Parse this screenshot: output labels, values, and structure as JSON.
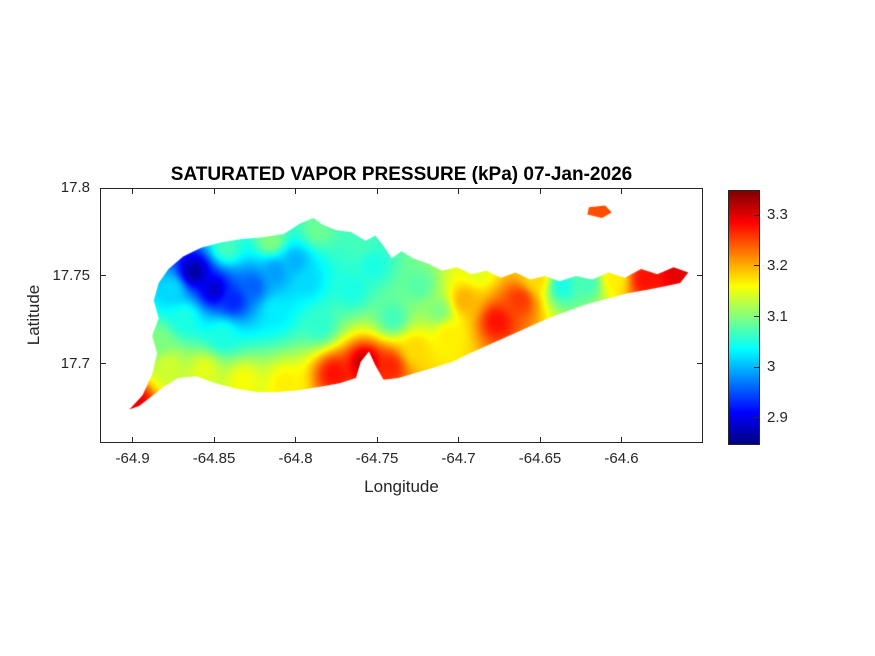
{
  "chart_data": {
    "type": "heatmap",
    "title": "SATURATED VAPOR PRESSURE (kPa) 07-Jan-2026",
    "xlabel": "Longitude",
    "ylabel": "Latitude",
    "xlim": [
      -64.92,
      -64.55
    ],
    "ylim": [
      17.655,
      17.8
    ],
    "xticks": [
      -64.9,
      -64.85,
      -64.8,
      -64.75,
      -64.7,
      -64.65,
      -64.6
    ],
    "yticks": [
      17.7,
      17.75,
      17.8
    ],
    "grid": false,
    "colorbar": {
      "colormap": "jet",
      "vmin": 2.85,
      "vmax": 3.35,
      "ticks": [
        2.9,
        3,
        3.1,
        3.2,
        3.3
      ]
    },
    "islands": [
      [
        [
          -64.902,
          17.674
        ],
        [
          -64.894,
          17.682
        ],
        [
          -64.888,
          17.694
        ],
        [
          -64.885,
          17.706
        ],
        [
          -64.888,
          17.716
        ],
        [
          -64.884,
          17.726
        ],
        [
          -64.887,
          17.736
        ],
        [
          -64.884,
          17.746
        ],
        [
          -64.878,
          17.754
        ],
        [
          -64.869,
          17.761
        ],
        [
          -64.858,
          17.766
        ],
        [
          -64.846,
          17.769
        ],
        [
          -64.833,
          17.771
        ],
        [
          -64.82,
          17.772
        ],
        [
          -64.807,
          17.774
        ],
        [
          -64.797,
          17.78
        ],
        [
          -64.789,
          17.783
        ],
        [
          -64.783,
          17.779
        ],
        [
          -64.775,
          17.776
        ],
        [
          -64.766,
          17.775
        ],
        [
          -64.757,
          17.77
        ],
        [
          -64.751,
          17.773
        ],
        [
          -64.746,
          17.767
        ],
        [
          -64.741,
          17.76
        ],
        [
          -64.735,
          17.764
        ],
        [
          -64.728,
          17.76
        ],
        [
          -64.719,
          17.757
        ],
        [
          -64.71,
          17.753
        ],
        [
          -64.701,
          17.755
        ],
        [
          -64.692,
          17.751
        ],
        [
          -64.683,
          17.753
        ],
        [
          -64.674,
          17.749
        ],
        [
          -64.665,
          17.752
        ],
        [
          -64.656,
          17.748
        ],
        [
          -64.647,
          17.75
        ],
        [
          -64.638,
          17.747
        ],
        [
          -64.628,
          17.75
        ],
        [
          -64.618,
          17.748
        ],
        [
          -64.608,
          17.752
        ],
        [
          -64.598,
          17.749
        ],
        [
          -64.588,
          17.754
        ],
        [
          -64.578,
          17.751
        ],
        [
          -64.568,
          17.755
        ],
        [
          -64.559,
          17.752
        ],
        [
          -64.564,
          17.746
        ],
        [
          -64.574,
          17.744
        ],
        [
          -64.585,
          17.742
        ],
        [
          -64.597,
          17.74
        ],
        [
          -64.609,
          17.737
        ],
        [
          -64.621,
          17.734
        ],
        [
          -64.633,
          17.73
        ],
        [
          -64.645,
          17.726
        ],
        [
          -64.657,
          17.721
        ],
        [
          -64.669,
          17.716
        ],
        [
          -64.681,
          17.711
        ],
        [
          -64.693,
          17.706
        ],
        [
          -64.704,
          17.701
        ],
        [
          -64.715,
          17.698
        ],
        [
          -64.726,
          17.695
        ],
        [
          -64.737,
          17.692
        ],
        [
          -64.746,
          17.691
        ],
        [
          -64.751,
          17.699
        ],
        [
          -64.755,
          17.707
        ],
        [
          -64.76,
          17.701
        ],
        [
          -64.763,
          17.692
        ],
        [
          -64.773,
          17.689
        ],
        [
          -64.785,
          17.687
        ],
        [
          -64.798,
          17.685
        ],
        [
          -64.811,
          17.684
        ],
        [
          -64.824,
          17.684
        ],
        [
          -64.837,
          17.686
        ],
        [
          -64.849,
          17.689
        ],
        [
          -64.861,
          17.693
        ],
        [
          -64.872,
          17.692
        ],
        [
          -64.881,
          17.687
        ],
        [
          -64.889,
          17.681
        ],
        [
          -64.896,
          17.676
        ]
      ],
      [
        [
          -64.62,
          17.789
        ],
        [
          -64.61,
          17.79
        ],
        [
          -64.606,
          17.786
        ],
        [
          -64.612,
          17.783
        ],
        [
          -64.621,
          17.785
        ]
      ]
    ],
    "samples": [
      [
        -64.862,
        17.752,
        2.87
      ],
      [
        -64.85,
        17.742,
        2.89
      ],
      [
        -64.838,
        17.736,
        2.93
      ],
      [
        -64.826,
        17.744,
        2.96
      ],
      [
        -64.812,
        17.752,
        2.99
      ],
      [
        -64.8,
        17.758,
        3.0
      ],
      [
        -64.793,
        17.747,
        3.02
      ],
      [
        -64.812,
        17.73,
        3.03
      ],
      [
        -64.876,
        17.742,
        3.02
      ],
      [
        -64.868,
        17.726,
        3.05
      ],
      [
        -64.845,
        17.716,
        3.05
      ],
      [
        -64.785,
        17.722,
        3.06
      ],
      [
        -64.765,
        17.742,
        3.05
      ],
      [
        -64.752,
        17.756,
        3.05
      ],
      [
        -64.74,
        17.726,
        3.07
      ],
      [
        -64.724,
        17.744,
        3.08
      ],
      [
        -64.712,
        17.73,
        3.1
      ],
      [
        -64.842,
        17.766,
        3.07
      ],
      [
        -64.815,
        17.77,
        3.1
      ],
      [
        -64.786,
        17.776,
        3.09
      ],
      [
        -64.76,
        17.768,
        3.07
      ],
      [
        -64.884,
        17.712,
        3.1
      ],
      [
        -64.878,
        17.698,
        3.14
      ],
      [
        -64.856,
        17.696,
        3.15
      ],
      [
        -64.832,
        17.69,
        3.16
      ],
      [
        -64.806,
        17.688,
        3.17
      ],
      [
        -64.899,
        17.677,
        3.3
      ],
      [
        -64.776,
        17.694,
        3.28
      ],
      [
        -64.757,
        17.7,
        3.32
      ],
      [
        -64.742,
        17.698,
        3.27
      ],
      [
        -64.726,
        17.708,
        3.18
      ],
      [
        -64.706,
        17.716,
        3.17
      ],
      [
        -64.696,
        17.736,
        3.2
      ],
      [
        -64.688,
        17.752,
        3.15
      ],
      [
        -64.676,
        17.724,
        3.28
      ],
      [
        -64.662,
        17.736,
        3.26
      ],
      [
        -64.652,
        17.748,
        3.18
      ],
      [
        -64.636,
        17.744,
        3.05
      ],
      [
        -64.62,
        17.746,
        3.07
      ],
      [
        -64.604,
        17.748,
        3.17
      ],
      [
        -64.585,
        17.748,
        3.28
      ],
      [
        -64.565,
        17.752,
        3.3
      ],
      [
        -64.613,
        17.787,
        3.25
      ]
    ]
  }
}
